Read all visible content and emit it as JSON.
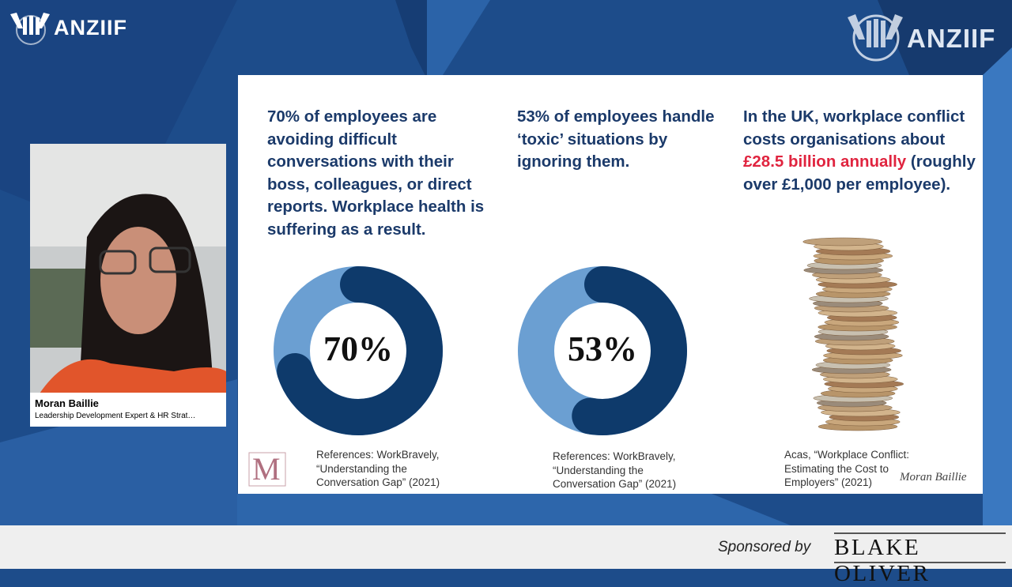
{
  "header": {
    "logo_left": "ANZIIF",
    "logo_right": "ANZIIF"
  },
  "speaker": {
    "name": "Moran Baillie",
    "title": "Leadership Development Expert & HR Strat…"
  },
  "slide": {
    "columns": [
      {
        "text": "70% of employees are avoiding difficult conversations with their boss, colleagues, or direct reports. Workplace health is suffering as a result.",
        "donut": {
          "value": 70,
          "label": "70%"
        },
        "reference": "References: WorkBravely, “Understanding the Conversation Gap” (2021)"
      },
      {
        "text": "53% of employees handle ‘toxic’ situations by ignoring them.",
        "donut": {
          "value": 53,
          "label": "53%"
        },
        "reference": "References: WorkBravely, “Understanding the Conversation Gap” (2021)"
      },
      {
        "text_before": "In the UK, workplace conflict costs organisations about ",
        "highlight": "£28.5 billion annually",
        "text_after": " (roughly over £1,000 per employee).",
        "reference": "Acas, “Workplace Conflict: Estimating the Cost to Employers” (2021)"
      }
    ],
    "monogram": "M",
    "signature": "Moran Baillie"
  },
  "footer": {
    "sponsored": "Sponsored by",
    "sponsor": "BLAKE OLIVER"
  }
}
